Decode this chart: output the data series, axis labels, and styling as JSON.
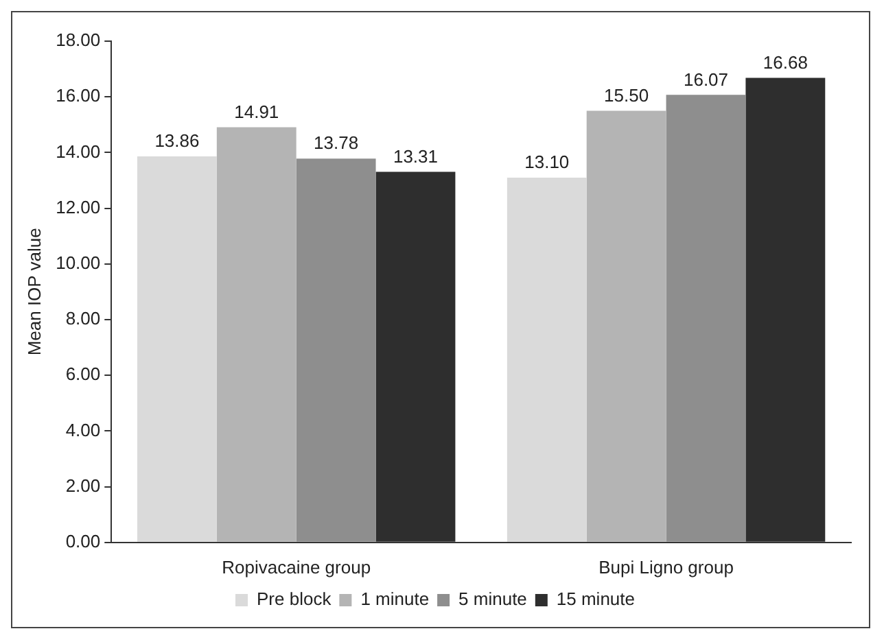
{
  "chart_data": {
    "type": "bar",
    "ylabel": "Mean IOP value",
    "categories": [
      "Ropivacaine group",
      "Bupi Ligno group"
    ],
    "series": [
      {
        "name": "Pre block",
        "color": "#dadada",
        "values": [
          13.86,
          13.1
        ],
        "value_labels": [
          "13.86",
          "13.10"
        ]
      },
      {
        "name": "1 minute",
        "color": "#b4b4b4",
        "values": [
          14.91,
          15.5
        ],
        "value_labels": [
          "14.91",
          "15.50"
        ]
      },
      {
        "name": "5 minute",
        "color": "#8e8e8e",
        "values": [
          13.78,
          16.07
        ],
        "value_labels": [
          "13.78",
          "16.07"
        ]
      },
      {
        "name": "15 minute",
        "color": "#2e2e2e",
        "values": [
          13.31,
          16.68
        ],
        "value_labels": [
          "13.31",
          "16.68"
        ]
      }
    ],
    "ylim": [
      0,
      18
    ],
    "yticks": [
      {
        "value": 0,
        "label": "0.00"
      },
      {
        "value": 2,
        "label": "2.00"
      },
      {
        "value": 4,
        "label": "4.00"
      },
      {
        "value": 6,
        "label": "6.00"
      },
      {
        "value": 8,
        "label": "8.00"
      },
      {
        "value": 10,
        "label": "10.00"
      },
      {
        "value": 12,
        "label": "12.00"
      },
      {
        "value": 14,
        "label": "14.00"
      },
      {
        "value": 16,
        "label": "16.00"
      },
      {
        "value": 18,
        "label": "18.00"
      }
    ],
    "grid": false,
    "legend": "bottom"
  }
}
